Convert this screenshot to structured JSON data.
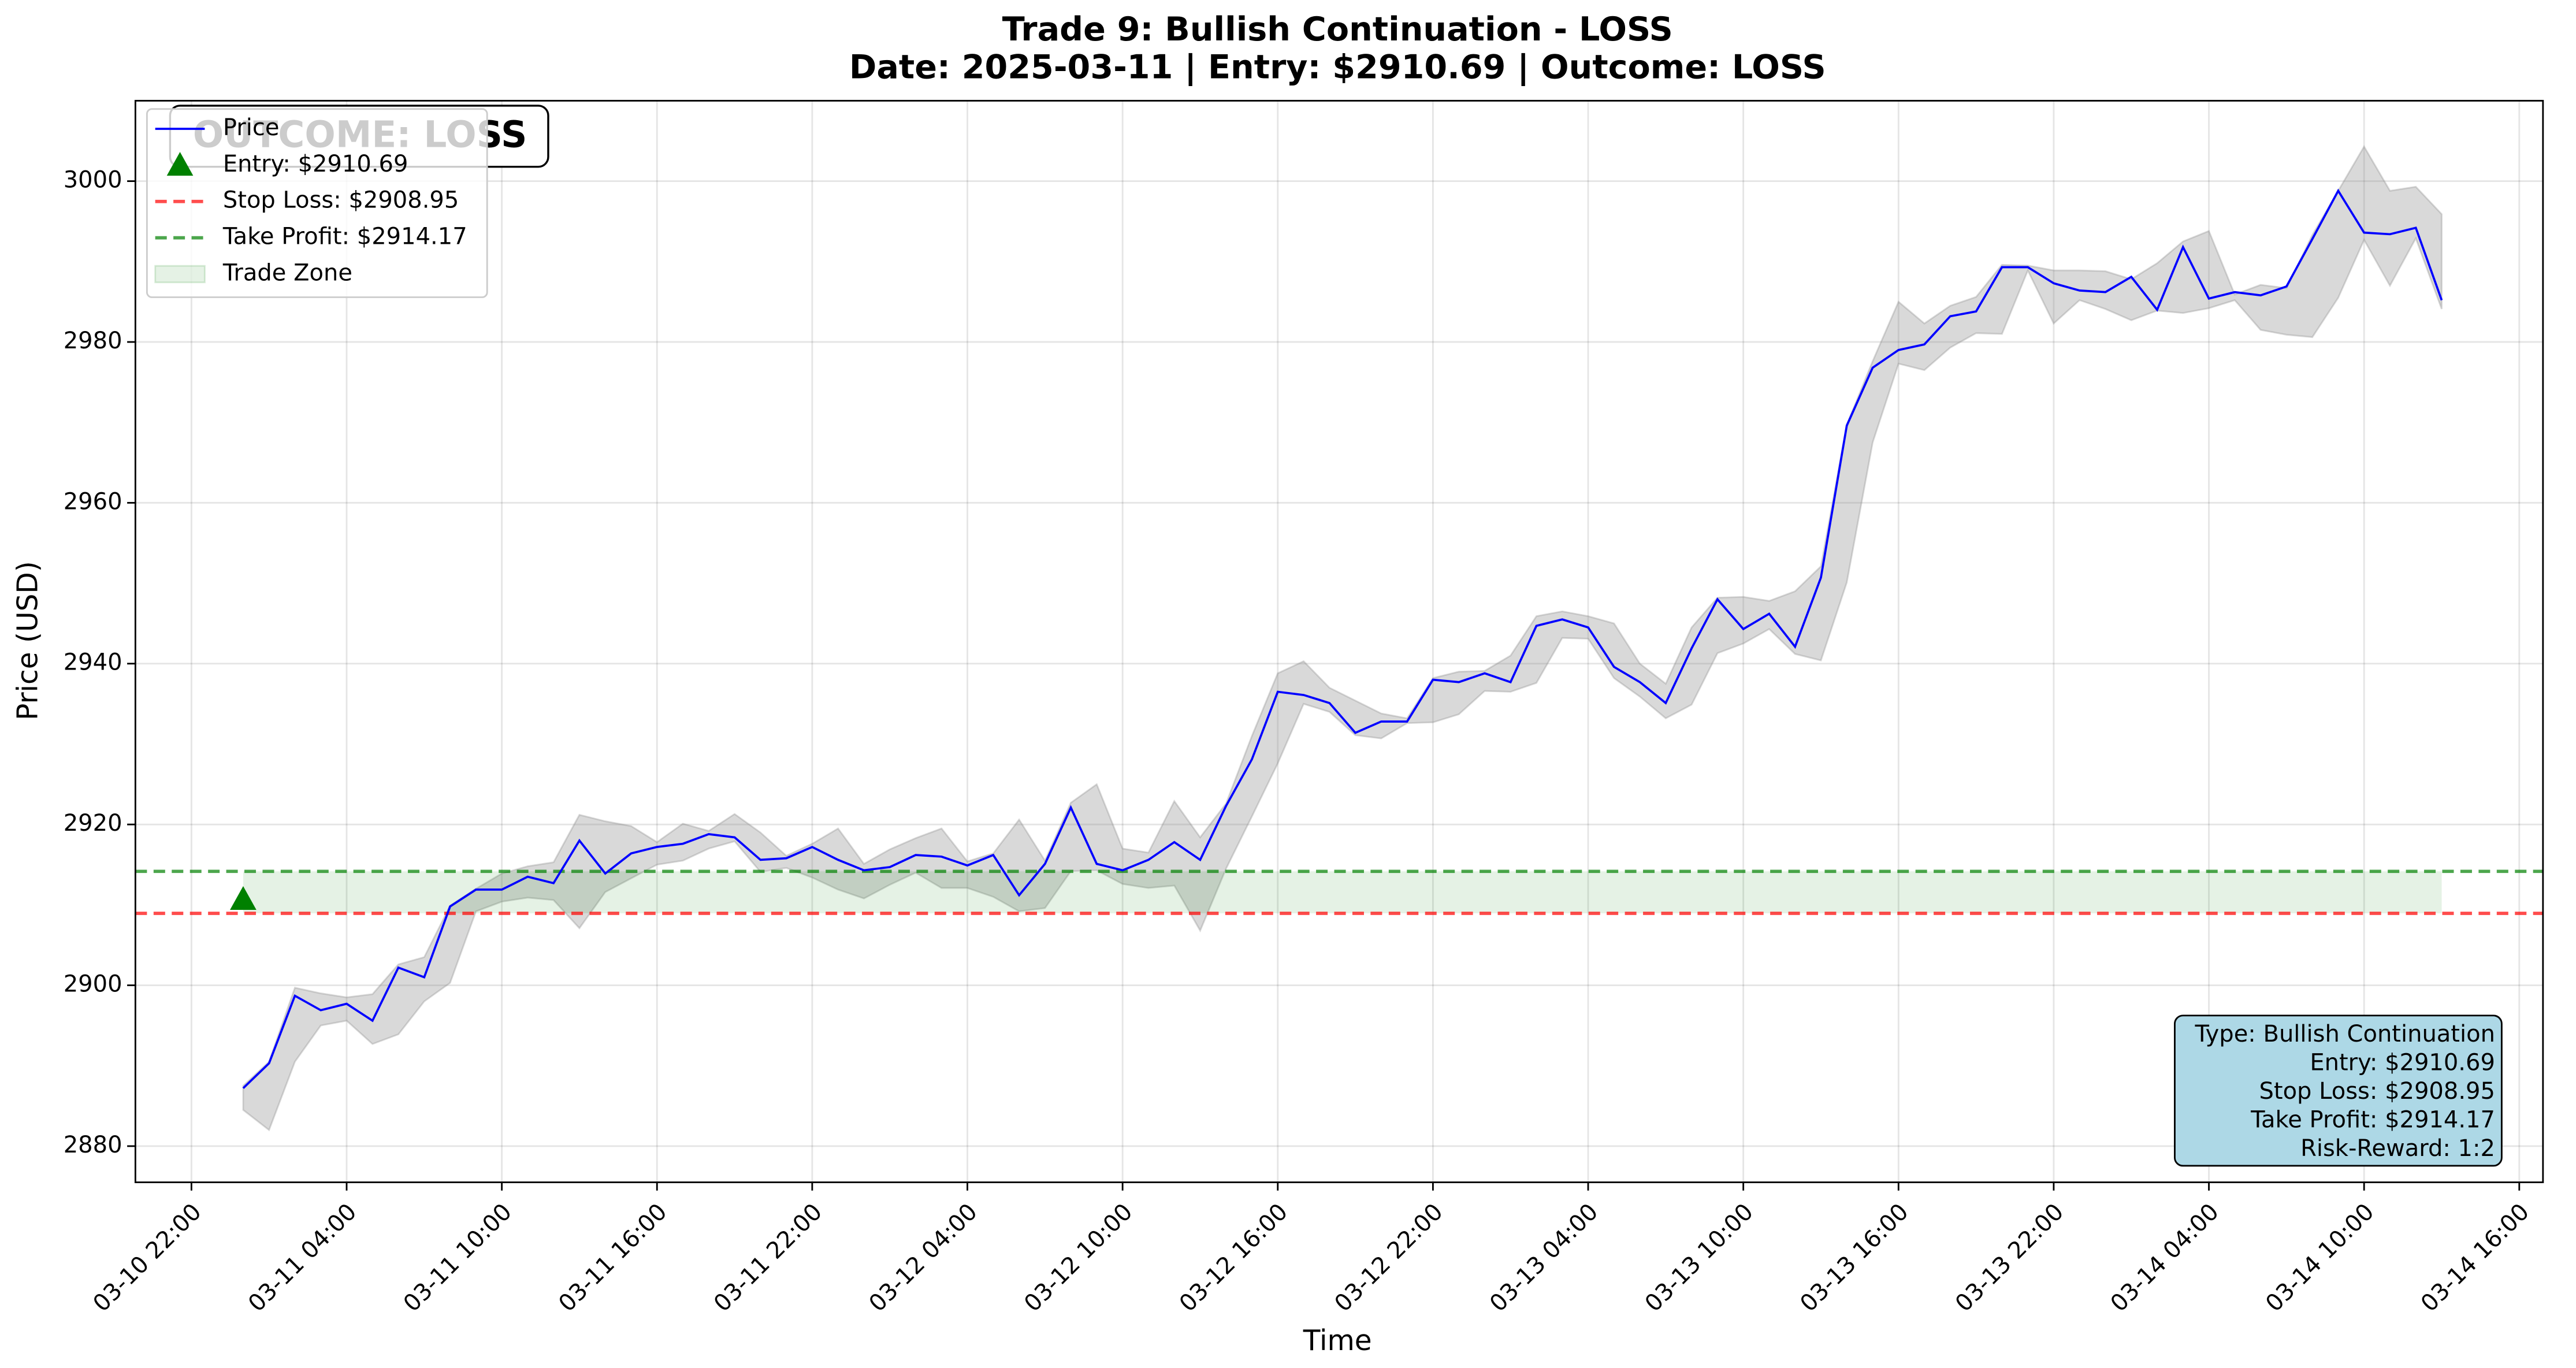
{
  "chart_data": {
    "type": "line",
    "title": "Trade 9: Bullish Continuation - LOSS",
    "subtitle": "Date: 2025-03-11 | Entry: $2910.69 | Outcome: LOSS",
    "x_label": "Time",
    "y_label": "Price (USD)",
    "x": [
      "03-11 00:00",
      "03-11 01:00",
      "03-11 02:00",
      "03-11 03:00",
      "03-11 04:00",
      "03-11 05:00",
      "03-11 06:00",
      "03-11 07:00",
      "03-11 08:00",
      "03-11 09:00",
      "03-11 10:00",
      "03-11 11:00",
      "03-11 12:00",
      "03-11 13:00",
      "03-11 14:00",
      "03-11 15:00",
      "03-11 16:00",
      "03-11 17:00",
      "03-11 18:00",
      "03-11 19:00",
      "03-11 20:00",
      "03-11 21:00",
      "03-11 22:00",
      "03-11 23:00",
      "03-12 00:00",
      "03-12 01:00",
      "03-12 02:00",
      "03-12 03:00",
      "03-12 04:00",
      "03-12 05:00",
      "03-12 06:00",
      "03-12 07:00",
      "03-12 08:00",
      "03-12 09:00",
      "03-12 10:00",
      "03-12 11:00",
      "03-12 12:00",
      "03-12 13:00",
      "03-12 14:00",
      "03-12 15:00",
      "03-12 16:00",
      "03-12 17:00",
      "03-12 18:00",
      "03-12 19:00",
      "03-12 20:00",
      "03-12 21:00",
      "03-12 22:00",
      "03-12 23:00",
      "03-13 00:00",
      "03-13 01:00",
      "03-13 02:00",
      "03-13 03:00",
      "03-13 04:00",
      "03-13 05:00",
      "03-13 06:00",
      "03-13 07:00",
      "03-13 08:00",
      "03-13 09:00",
      "03-13 10:00",
      "03-13 11:00",
      "03-13 12:00",
      "03-13 13:00",
      "03-13 14:00",
      "03-13 15:00",
      "03-13 16:00",
      "03-13 17:00",
      "03-13 18:00",
      "03-13 19:00",
      "03-13 20:00",
      "03-13 21:00",
      "03-13 22:00",
      "03-13 23:00",
      "03-14 00:00",
      "03-14 01:00",
      "03-14 02:00",
      "03-14 03:00",
      "03-14 04:00",
      "03-14 05:00",
      "03-14 06:00",
      "03-14 07:00",
      "03-14 08:00",
      "03-14 09:00",
      "03-14 10:00",
      "03-14 11:00",
      "03-14 12:00",
      "03-14 13:00"
    ],
    "series": [
      {
        "name": "Price",
        "color": "#0000ff",
        "values": [
          2887.2,
          2890.3,
          2898.7,
          2896.9,
          2897.7,
          2895.6,
          2902.2,
          2901.0,
          2909.8,
          2911.9,
          2911.9,
          2913.5,
          2912.7,
          2918.0,
          2913.9,
          2916.4,
          2917.2,
          2917.6,
          2918.8,
          2918.4,
          2915.6,
          2915.8,
          2917.2,
          2915.6,
          2914.3,
          2914.7,
          2916.2,
          2916.0,
          2914.9,
          2916.2,
          2911.2,
          2915.1,
          2922.1,
          2915.1,
          2914.3,
          2915.6,
          2917.8,
          2915.6,
          2922.3,
          2928.1,
          2936.5,
          2936.1,
          2935.1,
          2931.4,
          2932.8,
          2932.8,
          2938.0,
          2937.7,
          2938.8,
          2937.7,
          2944.7,
          2945.5,
          2944.5,
          2939.6,
          2937.7,
          2935.1,
          2941.9,
          2948.0,
          2944.3,
          2946.2,
          2942.1,
          2950.7,
          2969.6,
          2976.8,
          2979.0,
          2979.7,
          2983.2,
          2983.8,
          2989.3,
          2989.3,
          2987.3,
          2986.4,
          2986.2,
          2988.1,
          2984.0,
          2991.8,
          2985.4,
          2986.2,
          2985.8,
          2986.9,
          2992.8,
          2998.8,
          2993.6,
          2993.4,
          2994.2,
          2985.2
        ]
      }
    ],
    "band": {
      "color": "#808080",
      "upper": [
        2887.5,
        2890.5,
        2899.7,
        2899,
        2898.5,
        2898.9,
        2902.6,
        2903.5,
        2909.9,
        2912,
        2913.9,
        2914.8,
        2915.3,
        2921.2,
        2920.4,
        2919.8,
        2917.8,
        2920.1,
        2919.2,
        2921.3,
        2919,
        2916.1,
        2917.6,
        2919.5,
        2915.1,
        2916.9,
        2918.3,
        2919.5,
        2915.4,
        2916.4,
        2920.6,
        2915.5,
        2922.7,
        2925,
        2917,
        2916.5,
        2922.9,
        2918.4,
        2922.6,
        2931,
        2938.8,
        2940.3,
        2937,
        2935.4,
        2933.8,
        2933.2,
        2938.2,
        2939,
        2939.1,
        2941,
        2945.9,
        2946.5,
        2945.9,
        2945,
        2940,
        2937.5,
        2944.5,
        2948.2,
        2948.3,
        2947.8,
        2949,
        2952.1,
        2969.7,
        2977.6,
        2985,
        2982.3,
        2984.5,
        2985.6,
        2989.6,
        2989.5,
        2988.9,
        2988.9,
        2988.8,
        2987.8,
        2989.8,
        2992.5,
        2993.8,
        2985.9,
        2987.1,
        2986.7,
        2993.3,
        2998.8,
        3004.3,
        2998.8,
        2999.3,
        2995.9
      ],
      "lower": [
        2884.5,
        2882,
        2890.5,
        2895,
        2895.6,
        2892.7,
        2893.9,
        2898,
        2900.3,
        2909.2,
        2910.4,
        2910.9,
        2910.6,
        2907.1,
        2911.6,
        2913.3,
        2915,
        2915.5,
        2917,
        2917.9,
        2914.1,
        2914.6,
        2913.4,
        2911.9,
        2910.8,
        2912.5,
        2914,
        2912.1,
        2912.1,
        2911,
        2909.2,
        2909.6,
        2914.2,
        2914.3,
        2912.6,
        2912.1,
        2912.4,
        2906.8,
        2914.5,
        2921,
        2927.6,
        2935,
        2934,
        2931.1,
        2930.7,
        2932.6,
        2932.7,
        2933.7,
        2936.6,
        2936.5,
        2937.6,
        2943.2,
        2943.1,
        2938.2,
        2935.9,
        2933.2,
        2934.9,
        2941.3,
        2942.5,
        2944.3,
        2941.2,
        2940.4,
        2950.1,
        2967.5,
        2977.3,
        2976.5,
        2979.3,
        2981.1,
        2981,
        2988.9,
        2982.3,
        2985.2,
        2984.1,
        2982.7,
        2983.9,
        2983.6,
        2984.2,
        2985.2,
        2981.5,
        2980.9,
        2980.6,
        2985.5,
        2992.7,
        2987,
        2992.9,
        2984.1
      ]
    },
    "entry": {
      "name": "Entry: $2910.69",
      "x": "03-11 00:00",
      "value": 2910.69,
      "color": "#008000"
    },
    "stop_loss": {
      "name": "Stop Loss: $2908.95",
      "value": 2908.95,
      "color": "#ff0000"
    },
    "take_profit": {
      "name": "Take Profit: $2914.17",
      "value": 2914.17,
      "color": "#008000"
    },
    "trade_zone": {
      "name": "Trade Zone",
      "x_range": [
        "03-11 00:00",
        "03-14 13:00"
      ],
      "color": "#008000"
    },
    "outcome_label": "OUTCOME: LOSS",
    "info_box": [
      "Type: Bullish Continuation",
      "Entry: $2910.69",
      "Stop Loss: $2908.95",
      "Take Profit: $2914.17",
      "Risk-Reward: 1:2"
    ],
    "xlim": [
      "03-10 19:50",
      "03-14 16:55"
    ],
    "ylim": [
      2875.5,
      3010
    ],
    "xticks": [
      "03-10 22:00",
      "03-11 04:00",
      "03-11 10:00",
      "03-11 16:00",
      "03-11 22:00",
      "03-12 04:00",
      "03-12 10:00",
      "03-12 16:00",
      "03-12 22:00",
      "03-13 04:00",
      "03-13 10:00",
      "03-13 16:00",
      "03-13 22:00",
      "03-14 04:00",
      "03-14 10:00",
      "03-14 16:00"
    ],
    "yticks": [
      2880,
      2900,
      2920,
      2940,
      2960,
      2980,
      3000
    ],
    "grid": true,
    "legend": "upper left"
  }
}
